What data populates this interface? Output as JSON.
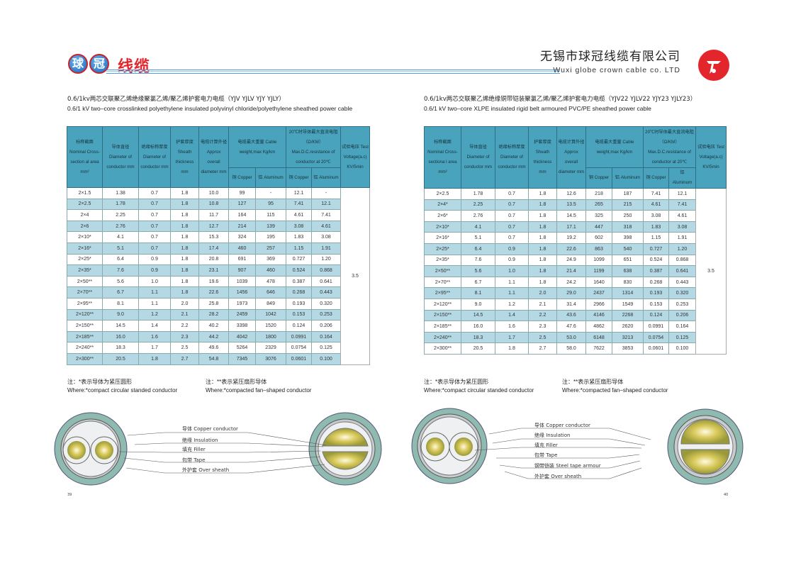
{
  "header": {
    "logo_chars": [
      "球",
      "冠"
    ],
    "brand": "线缆",
    "company_cn": "无锡市球冠线缆有限公司",
    "company_en": "Wuxi globe crown cable co. LTD",
    "red_logo": "竹海"
  },
  "colors": {
    "header_bg": "#4aa3bd",
    "stripe": "#b4d9e4",
    "brand_red": "#e2262d",
    "rule_blue": "#4da0dd"
  },
  "columns_left": [
    "标称截面 Nominal Cross-section al area mm²",
    "导体直径 Diameter of conductor mm",
    "绝缘标称厚度 Diameter of conductor mm",
    "护套厚度 Sheath thickness mm",
    "电缆计算外径 Approx overall diameter mm",
    "电缆最大重量 Cable weight,max Kg/km",
    "20℃时导体最大直流电阻（Ω/KM） Max.D.C.resistance of conductor at 20℃",
    "试验电压 Test Voltage(a.c) KV/5min",
    "铜 Copper",
    "铝 Aluminum",
    "铜 Copper",
    "铝 Aluminum"
  ],
  "columns_right": [
    "标称截面 Nominal Cross-sectiona l area mm²",
    "导体直径 Diameter of conductor mm",
    "绝缘标称厚度 Diameter of conductor mm",
    "护套厚度 Sheath thickness mm",
    "电缆计算外径 Approx overall diameter mm",
    "电缆最大重量 Cable weight,max Kg/km",
    "20℃时导体最大直流电阻（Ω/KM） Max.D.C.resistance of conductor at 20℃",
    "试验电压 Test Voltage(a.c) KV/5min",
    "铜 Copper",
    "铝 Aluminum",
    "铜 Copper",
    "铝 Aluminum"
  ],
  "left": {
    "title_cn": "0.6/1kv两芯交联聚乙烯绝缘聚氯乙烯/聚乙烯护套电力电缆（YJV  YJLV  YJY  YJLY）",
    "title_en": "0.6/1 kV two–core crosslinked polyethylene insulated polyvinyl chloride/polyethylene sheathed power cable",
    "test_voltage": "3.5",
    "rows": [
      [
        "2×1.5",
        "1.38",
        "0.7",
        "1.8",
        "10.0",
        "99",
        "-",
        "12.1",
        "-"
      ],
      [
        "2×2.5",
        "1.78",
        "0.7",
        "1.8",
        "10.8",
        "127",
        "95",
        "7.41",
        "12.1"
      ],
      [
        "2×4",
        "2.25",
        "0.7",
        "1.8",
        "11.7",
        "164",
        "115",
        "4.61",
        "7.41"
      ],
      [
        "2×6",
        "2.76",
        "0.7",
        "1.8",
        "12.7",
        "214",
        "139",
        "3.08",
        "4.61"
      ],
      [
        "2×10*",
        "4.1",
        "0.7",
        "1.8",
        "15.3",
        "324",
        "195",
        "1.83",
        "3.08"
      ],
      [
        "2×16*",
        "5.1",
        "0.7",
        "1.8",
        "17.4",
        "460",
        "257",
        "1.15",
        "1.91"
      ],
      [
        "2×25*",
        "6.4",
        "0.9",
        "1.8",
        "20.8",
        "691",
        "369",
        "0.727",
        "1.20"
      ],
      [
        "2×35*",
        "7.6",
        "0.9",
        "1.8",
        "23.1",
        "907",
        "460",
        "0.524",
        "0.868"
      ],
      [
        "2×50**",
        "5.6",
        "1.0",
        "1.8",
        "19.6",
        "1039",
        "478",
        "0.387",
        "0.641"
      ],
      [
        "2×70**",
        "6.7",
        "1.1",
        "1.8",
        "22.6",
        "1456",
        "646",
        "0.268",
        "0.443"
      ],
      [
        "2×95**",
        "8.1",
        "1.1",
        "2.0",
        "25.8",
        "1973",
        "849",
        "0.193",
        "0.320"
      ],
      [
        "2×120**",
        "9.0",
        "1.2",
        "2.1",
        "28.2",
        "2459",
        "1042",
        "0.153",
        "0.253"
      ],
      [
        "2×150**",
        "14.5",
        "1.4",
        "2.2",
        "40.2",
        "3398",
        "1520",
        "0.124",
        "0.206"
      ],
      [
        "2×185**",
        "16.0",
        "1.6",
        "2.3",
        "44.2",
        "4042",
        "1800",
        "0.0991",
        "0.164"
      ],
      [
        "2×240**",
        "18.3",
        "1.7",
        "2.5",
        "49.6",
        "5264",
        "2329",
        "0.0754",
        "0.125"
      ],
      [
        "2×300**",
        "20.5",
        "1.8",
        "2.7",
        "54.8",
        "7345",
        "3076",
        "0.0601",
        "0.100"
      ]
    ],
    "notes": [
      {
        "cn": "注：*表示导体为紧压圆形",
        "en": "Where:*compact circular standed conductor"
      },
      {
        "cn": "注：**表示紧压扇形导体",
        "en": "Where:*compacted fan–shaped conductor"
      }
    ],
    "labels": [
      "导体 Copper conductor",
      "绝缘 Insulation",
      "填充 Filler",
      "包带 Tape",
      "外护套 Over sheath"
    ],
    "page_number": "39"
  },
  "right": {
    "title_cn": "0.6/1kv两芯交联聚乙烯绝缘铜带铠装聚氯乙烯/聚乙烯护套电力电缆（YJV22  YJLV22  YJY23  YJLY23）",
    "title_en": "0.6/1 kV two–core XLPE insulated rigid belt armoured PVC/PE sheathed power cable",
    "test_voltage": "3.5",
    "rows": [
      [
        "2×2.5",
        "1.78",
        "0.7",
        "1.8",
        "12.6",
        "218",
        "187",
        "7.41",
        "12.1"
      ],
      [
        "2×4*",
        "2.25",
        "0.7",
        "1.8",
        "13.5",
        "265",
        "215",
        "4.61",
        "7.41"
      ],
      [
        "2×6*",
        "2.76",
        "0.7",
        "1.8",
        "14.5",
        "325",
        "250",
        "3.08",
        "4.61"
      ],
      [
        "2×10*",
        "4.1",
        "0.7",
        "1.8",
        "17.1",
        "447",
        "318",
        "1.83",
        "3.08"
      ],
      [
        "2×16*",
        "5.1",
        "0.7",
        "1.8",
        "19.2",
        "602",
        "398",
        "1.15",
        "1.91"
      ],
      [
        "2×25*",
        "6.4",
        "0.9",
        "1.8",
        "22.6",
        "863",
        "540",
        "0.727",
        "1.20"
      ],
      [
        "2×35*",
        "7.6",
        "0.9",
        "1.8",
        "24.9",
        "1099",
        "651",
        "0.524",
        "0.868"
      ],
      [
        "2×50**",
        "5.6",
        "1.0",
        "1.8",
        "21.4",
        "1199",
        "638",
        "0.387",
        "0.641"
      ],
      [
        "2×70**",
        "6.7",
        "1.1",
        "1.8",
        "24.2",
        "1640",
        "830",
        "0.268",
        "0.443"
      ],
      [
        "2×95**",
        "8.1",
        "1.1",
        "2.0",
        "29.0",
        "2437",
        "1314",
        "0.193",
        "0.320"
      ],
      [
        "2×120**",
        "9.0",
        "1.2",
        "2.1",
        "31.4",
        "2966",
        "1549",
        "0.153",
        "0.253"
      ],
      [
        "2×150**",
        "14.5",
        "1.4",
        "2.2",
        "43.6",
        "4146",
        "2268",
        "0.124",
        "0.206"
      ],
      [
        "2×185**",
        "16.0",
        "1.6",
        "2.3",
        "47.6",
        "4862",
        "2620",
        "0.0991",
        "0.164"
      ],
      [
        "2×240**",
        "18.3",
        "1.7",
        "2.5",
        "53.0",
        "6148",
        "3213",
        "0.0754",
        "0.125"
      ],
      [
        "2×300**",
        "20.5",
        "1.8",
        "2.7",
        "58.0",
        "7622",
        "3853",
        "0.0601",
        "0.100"
      ]
    ],
    "notes": [
      {
        "cn": "注：*表示导体为紧压圆形",
        "en": "Where:*compact circular standed conductor"
      },
      {
        "cn": "注：**表示紧压扇形导体",
        "en": "Where:*compacted fan–shaped conductor"
      }
    ],
    "labels": [
      "导体 Copper conductor",
      "绝缘 Insulation",
      "填充 Filler",
      "包带 Tape",
      "钢带铠装 Steel tape armour",
      "外护套 Over sheath"
    ],
    "page_number": "40"
  }
}
